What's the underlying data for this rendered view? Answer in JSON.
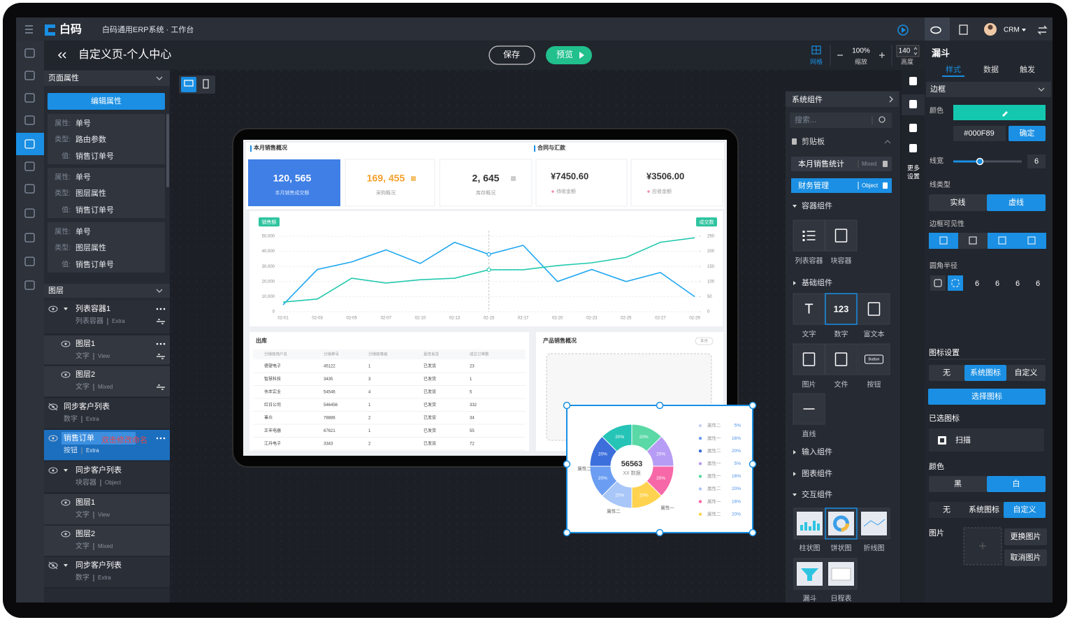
{
  "header": {
    "logo": "白码",
    "title": "白码通用ERP系统 · 工作台",
    "user": "CRM"
  },
  "toolbar": {
    "page_title": "自定义页-个人中心",
    "save": "保存",
    "preview": "预览",
    "grid": "网格",
    "zoom": "100%",
    "zoom_label": "缩放",
    "height": "140",
    "height_label": "高度"
  },
  "page_props": {
    "title": "页面属性",
    "edit": "编辑属性",
    "groups": [
      {
        "attr_label": "属性:",
        "attr": "单号",
        "type_label": "类型:",
        "type": "路由参数",
        "value_label": "值:",
        "value": "销售订单号"
      },
      {
        "attr_label": "属性:",
        "attr": "单号",
        "type_label": "类型:",
        "type": "图层属性",
        "value_label": "值:",
        "value": "销售订单号"
      },
      {
        "attr_label": "属性:",
        "attr": "单号",
        "type_label": "类型:",
        "type": "图层属性",
        "value_label": "值:",
        "value": "销售订单号"
      }
    ]
  },
  "layers": {
    "title": "图层",
    "rename_hint": "双击修改命名",
    "items": [
      {
        "name": "列表容器1",
        "type": "列表容器",
        "tag": "Extra"
      },
      {
        "name": "图层1",
        "type": "文字",
        "tag": "View"
      },
      {
        "name": "图层2",
        "type": "文字",
        "tag": "Mixed"
      },
      {
        "name": "同步客户列表",
        "type": "数字",
        "tag": "Extra"
      },
      {
        "name": "销售订单",
        "type": "按钮",
        "tag": "Extra"
      },
      {
        "name": "同步客户列表",
        "type": "块容器",
        "tag": "Object"
      },
      {
        "name": "图层1",
        "type": "文字",
        "tag": "View"
      },
      {
        "name": "图层2",
        "type": "文字",
        "tag": "Mixed"
      },
      {
        "name": "同步客户列表",
        "type": "数字",
        "tag": "Extra"
      }
    ]
  },
  "canvas": {
    "sales_title": "本月销售概况",
    "contract_title": "合同与汇款",
    "kpis": [
      {
        "value": "120, 565",
        "label": "本月销售成交额"
      },
      {
        "value": "169, 455",
        "label": "采购概况"
      },
      {
        "value": "2, 645",
        "label": "库存概况"
      },
      {
        "value": "¥7450.60",
        "label": "待收金额"
      },
      {
        "value": "¥3506.00",
        "label": "应收金额"
      }
    ],
    "line_chart": {
      "type": "line",
      "left_label": "销售额",
      "right_label": "成交数",
      "categories": [
        "02-01",
        "02-03",
        "02-05",
        "02-07",
        "02-10",
        "02-13",
        "02-15",
        "02-17",
        "02-20",
        "02-23",
        "02-25",
        "02-27",
        "02-29"
      ],
      "series": [
        {
          "name": "销售额",
          "color": "#1ea7f0",
          "values": [
            4600,
            28000,
            33000,
            41000,
            32000,
            46000,
            38000,
            44000,
            20000,
            28000,
            20000,
            26000,
            10000
          ]
        },
        {
          "name": "成交数",
          "color": "#22c9ae",
          "axis": "y2",
          "values": [
            32,
            42,
            111,
            95,
            106,
            111,
            139,
            139,
            153,
            162,
            180,
            230,
            245
          ]
        }
      ],
      "ylim": [
        0,
        50000
      ],
      "yticks": [
        0,
        {
          "value": 10000,
          "label": "10,000"
        },
        {
          "value": 20000,
          "label": "20,000"
        },
        {
          "value": 30000,
          "label": "30,000"
        },
        {
          "value": 40000,
          "label": "40,000"
        },
        {
          "value": 50000,
          "label": "50,000"
        }
      ],
      "y2lim": [
        0,
        250
      ],
      "y2ticks": [
        0,
        50,
        100,
        150,
        200,
        250
      ],
      "grid": true
    },
    "table": {
      "title": "出库",
      "headers": [
        "分销商用户名",
        "分销单号",
        "分销商等级",
        "是否发货",
        "成交订单数"
      ],
      "rows": [
        [
          "德望电子",
          "45122",
          "1",
          "已发货",
          "23"
        ],
        [
          "智慧科技",
          "3435",
          "3",
          "已发货",
          "1"
        ],
        [
          "伟丰实业",
          "54546",
          "4",
          "已发货",
          "5"
        ],
        [
          "红日公司",
          "546456",
          "1",
          "已发货",
          "332"
        ],
        [
          "事众",
          "78886",
          "2",
          "已发货",
          "34"
        ],
        [
          "正丰电器",
          "67621",
          "1",
          "已发货",
          "55"
        ],
        [
          "江丹电子",
          "3343",
          "2",
          "已发货",
          "72"
        ]
      ]
    },
    "product_title": "产品销售概况",
    "period": "本月",
    "donut": {
      "type": "pie",
      "center_value": "56563",
      "center_label": "XX 数据",
      "values": [
        20,
        20,
        20,
        20,
        20,
        20,
        20,
        20
      ],
      "value_labels": [
        "20%",
        "20%",
        "20%",
        "20%",
        "20%",
        "20%",
        "20%",
        "20%"
      ],
      "colors": [
        "#5ad8a6",
        "#b79cf5",
        "#f768a8",
        "#ffd34f",
        "#a8c6f7",
        "#6b9ef2",
        "#3c6fdc",
        "#26c4b6"
      ],
      "outer_labels": [
        "属性二",
        "属性二",
        "属性一"
      ],
      "legend": {
        "names": [
          "属性二",
          "属性一",
          "属性二",
          "属性一",
          "属性一",
          "属性二",
          "属性一",
          "属性二"
        ],
        "values": [
          5,
          16,
          20,
          5,
          16,
          20,
          16,
          20
        ],
        "value_labels": [
          "5%",
          "16%",
          "20%",
          "5%",
          "16%",
          "20%",
          "16%",
          "20%"
        ],
        "colors": [
          "#c6cff2",
          "#6b9ef2",
          "#3c6fdc",
          "#b79cf5",
          "#5ad8a6",
          "#a8c6f7",
          "#f768a8",
          "#ffd34f"
        ]
      }
    }
  },
  "components": {
    "title": "系统组件",
    "search": "搜索...",
    "clipboard": "剪贴板",
    "clip_items": [
      {
        "name": "本月销售统计",
        "tag": "Mixed"
      },
      {
        "name": "财务管理",
        "tag": "Object"
      }
    ],
    "icon_text": {
      "text": "T",
      "number": "123",
      "button": "Button"
    },
    "groups": [
      {
        "title": "容器组件",
        "items": [
          "列表容器",
          "块容器"
        ]
      },
      {
        "title": "基础组件",
        "items": [
          "文字",
          "数字",
          "富文本",
          "图片",
          "文件",
          "按钮",
          "直线"
        ]
      },
      {
        "title": "输入组件"
      },
      {
        "title": "图表组件"
      },
      {
        "title": "交互组件",
        "items": [
          "柱状图",
          "饼状图",
          "折线图",
          "漏斗",
          "日程表"
        ]
      }
    ]
  },
  "more_settings": [
    "更多",
    "设置"
  ],
  "props": {
    "title": "漏斗",
    "tabs": [
      "样式",
      "数据",
      "触发"
    ],
    "border": "边框",
    "color_label": "颜色",
    "hex": "#000F89",
    "confirm": "确定",
    "width_label": "线宽",
    "width": 6,
    "line_type_label": "线类型",
    "line_types": [
      "实线",
      "虚线"
    ],
    "visibility_label": "边框可见性",
    "radius_label": "圆角半径",
    "radii": [
      6,
      6,
      6,
      6
    ],
    "icon_settings": "图标设置",
    "icon_modes": [
      "无",
      "系统图标",
      "自定义"
    ],
    "choose_icon": "选择图标",
    "chosen_label": "已选图标",
    "chosen": "扫描",
    "color2_label": "颜色",
    "colors": [
      "黑",
      "白"
    ],
    "icon_modes2": [
      "无",
      "系统图标",
      "自定义"
    ],
    "image_label": "图片",
    "change_image": "更换图片",
    "cancel_image": "取消图片"
  }
}
